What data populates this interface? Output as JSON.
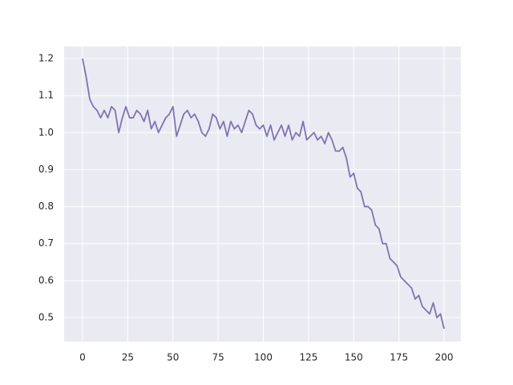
{
  "chart_data": {
    "type": "line",
    "color": "#8172b3",
    "grid": true,
    "x": [
      0,
      2,
      4,
      6,
      8,
      10,
      12,
      14,
      16,
      18,
      20,
      22,
      24,
      26,
      28,
      30,
      32,
      34,
      36,
      38,
      40,
      42,
      44,
      46,
      48,
      50,
      52,
      54,
      56,
      58,
      60,
      62,
      64,
      66,
      68,
      70,
      72,
      74,
      76,
      78,
      80,
      82,
      84,
      86,
      88,
      90,
      92,
      94,
      96,
      98,
      100,
      102,
      104,
      106,
      108,
      110,
      112,
      114,
      116,
      118,
      120,
      122,
      124,
      126,
      128,
      130,
      132,
      134,
      136,
      138,
      140,
      142,
      144,
      146,
      148,
      150,
      152,
      154,
      156,
      158,
      160,
      162,
      164,
      166,
      168,
      170,
      172,
      174,
      176,
      178,
      180,
      182,
      184,
      186,
      188,
      190,
      192,
      194,
      196,
      198,
      200
    ],
    "values": [
      1.2,
      1.15,
      1.09,
      1.07,
      1.06,
      1.04,
      1.06,
      1.04,
      1.07,
      1.06,
      1.0,
      1.04,
      1.07,
      1.04,
      1.04,
      1.06,
      1.05,
      1.03,
      1.06,
      1.01,
      1.03,
      1.0,
      1.02,
      1.04,
      1.05,
      1.07,
      0.99,
      1.02,
      1.05,
      1.06,
      1.04,
      1.05,
      1.03,
      1.0,
      0.99,
      1.01,
      1.05,
      1.04,
      1.01,
      1.03,
      0.99,
      1.03,
      1.01,
      1.02,
      1.0,
      1.03,
      1.06,
      1.05,
      1.02,
      1.01,
      1.02,
      0.99,
      1.02,
      0.98,
      1.0,
      1.02,
      0.99,
      1.02,
      0.98,
      1.0,
      0.99,
      1.03,
      0.98,
      0.99,
      1.0,
      0.98,
      0.99,
      0.97,
      1.0,
      0.98,
      0.95,
      0.95,
      0.96,
      0.93,
      0.88,
      0.89,
      0.85,
      0.84,
      0.8,
      0.8,
      0.79,
      0.75,
      0.74,
      0.7,
      0.7,
      0.66,
      0.65,
      0.64,
      0.61,
      0.6,
      0.59,
      0.58,
      0.55,
      0.56,
      0.53,
      0.52,
      0.51,
      0.54,
      0.5,
      0.51,
      0.47
    ],
    "xlim": [
      -10.2,
      209.3
    ],
    "ylim": [
      0.435,
      1.2325
    ],
    "xticks": [
      0,
      25,
      50,
      75,
      100,
      125,
      150,
      175,
      200
    ],
    "yticks": [
      {
        "value": 0.5,
        "label": "0.5"
      },
      {
        "value": 0.6,
        "label": "0.6"
      },
      {
        "value": 0.7,
        "label": "0.7"
      },
      {
        "value": 0.8,
        "label": "0.8"
      },
      {
        "value": 0.9,
        "label": "0.9"
      },
      {
        "value": 1.0,
        "label": "1.0"
      },
      {
        "value": 1.1,
        "label": "1.1"
      },
      {
        "value": 1.2,
        "label": "1.2"
      }
    ]
  }
}
